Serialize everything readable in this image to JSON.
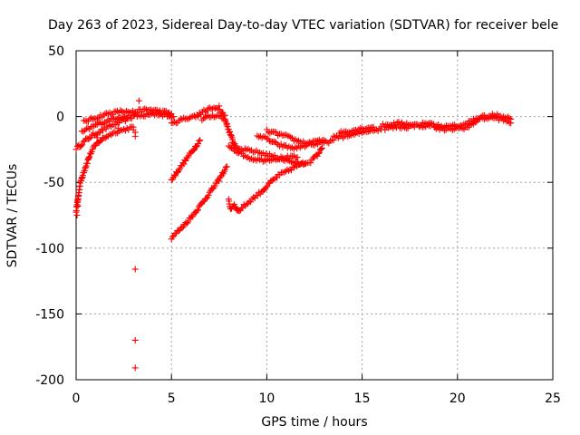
{
  "chart_data": {
    "type": "scatter",
    "title": "Day 263 of 2023, Sidereal Day-to-day VTEC variation (SDTVAR) for receiver bele",
    "xlabel": "GPS time / hours",
    "ylabel": "SDTVAR / TECUs",
    "xlim": [
      0,
      25
    ],
    "ylim": [
      -200,
      50
    ],
    "xticks": [
      0,
      5,
      10,
      15,
      20,
      25
    ],
    "yticks": [
      -200,
      -150,
      -100,
      -50,
      0,
      50
    ],
    "xtick_labels": [
      "0",
      "5",
      "10",
      "15",
      "20",
      "25"
    ],
    "ytick_labels": [
      "-200",
      "-150",
      "-100",
      "-50",
      "0",
      "50"
    ],
    "grid": true,
    "marker": "+",
    "color": "#ff0000",
    "series": [
      {
        "name": "SDTVAR",
        "tracks": [
          [
            [
              0.0,
              -24
            ],
            [
              0.2,
              -22
            ],
            [
              0.5,
              -18
            ],
            [
              0.9,
              -14
            ],
            [
              1.4,
              -10
            ],
            [
              2.0,
              -6
            ],
            [
              2.5,
              -3
            ],
            [
              3.0,
              0
            ],
            [
              3.1,
              2
            ]
          ],
          [
            [
              0.0,
              -72
            ],
            [
              0.1,
              -62
            ],
            [
              0.2,
              -52
            ],
            [
              0.35,
              -44
            ],
            [
              0.5,
              -38
            ],
            [
              0.7,
              -30
            ],
            [
              0.9,
              -24
            ],
            [
              1.2,
              -19
            ],
            [
              1.6,
              -15
            ],
            [
              2.0,
              -12
            ],
            [
              2.5,
              -10
            ],
            [
              3.0,
              -8
            ]
          ],
          [
            [
              0.4,
              -4
            ],
            [
              0.8,
              -2
            ],
            [
              1.2,
              0
            ],
            [
              1.6,
              2
            ],
            [
              2.0,
              3
            ],
            [
              2.4,
              4
            ],
            [
              2.8,
              3
            ]
          ],
          [
            [
              0.3,
              -12
            ],
            [
              0.7,
              -9
            ],
            [
              1.1,
              -6
            ],
            [
              1.5,
              -4
            ],
            [
              1.9,
              -2
            ],
            [
              2.3,
              0
            ],
            [
              2.7,
              -1
            ]
          ],
          [
            [
              2.8,
              3
            ],
            [
              3.2,
              4
            ],
            [
              3.6,
              5
            ],
            [
              4.0,
              5
            ],
            [
              4.4,
              4
            ],
            [
              4.8,
              3
            ],
            [
              5.0,
              2
            ]
          ],
          [
            [
              3.2,
              0
            ],
            [
              3.7,
              1
            ],
            [
              4.2,
              2
            ],
            [
              4.7,
              1
            ],
            [
              5.1,
              0
            ]
          ],
          [
            [
              5.0,
              -6
            ],
            [
              5.4,
              -3
            ],
            [
              5.8,
              -1
            ],
            [
              6.2,
              0
            ],
            [
              6.4,
              1
            ]
          ],
          [
            [
              5.0,
              -48
            ],
            [
              5.3,
              -42
            ],
            [
              5.6,
              -36
            ],
            [
              5.9,
              -30
            ],
            [
              6.2,
              -24
            ],
            [
              6.5,
              -18
            ]
          ],
          [
            [
              5.0,
              -92
            ],
            [
              5.5,
              -85
            ],
            [
              6.0,
              -77
            ],
            [
              6.5,
              -68
            ],
            [
              7.0,
              -58
            ],
            [
              7.5,
              -48
            ],
            [
              7.9,
              -38
            ]
          ],
          [
            [
              6.4,
              1
            ],
            [
              6.7,
              4
            ],
            [
              7.0,
              6
            ],
            [
              7.3,
              6
            ],
            [
              7.6,
              4
            ],
            [
              7.8,
              1
            ]
          ],
          [
            [
              6.6,
              -2
            ],
            [
              7.0,
              0
            ],
            [
              7.4,
              1
            ],
            [
              7.8,
              -2
            ]
          ],
          [
            [
              7.8,
              -2
            ],
            [
              8.0,
              -10
            ],
            [
              8.2,
              -18
            ],
            [
              8.4,
              -23
            ],
            [
              8.6,
              -25
            ]
          ],
          [
            [
              8.0,
              -64
            ],
            [
              8.1,
              -70
            ],
            [
              8.3,
              -67
            ],
            [
              8.5,
              -72
            ],
            [
              8.8,
              -68
            ],
            [
              9.3,
              -62
            ],
            [
              9.8,
              -56
            ],
            [
              10.2,
              -50
            ],
            [
              10.6,
              -45
            ],
            [
              11.0,
              -42
            ],
            [
              11.5,
              -38
            ],
            [
              12.0,
              -36
            ]
          ],
          [
            [
              8.0,
              -22
            ],
            [
              8.6,
              -28
            ],
            [
              9.2,
              -32
            ],
            [
              9.8,
              -33
            ],
            [
              10.4,
              -32
            ],
            [
              11.0,
              -31
            ],
            [
              11.6,
              -31
            ]
          ],
          [
            [
              8.6,
              -25
            ],
            [
              9.2,
              -26
            ],
            [
              9.8,
              -28
            ],
            [
              10.5,
              -31
            ],
            [
              11.2,
              -34
            ],
            [
              11.8,
              -36
            ],
            [
              12.3,
              -34
            ],
            [
              12.6,
              -30
            ],
            [
              12.9,
              -24
            ]
          ],
          [
            [
              9.5,
              -14
            ],
            [
              10.0,
              -17
            ],
            [
              10.5,
              -21
            ],
            [
              11.0,
              -23
            ],
            [
              11.5,
              -24
            ],
            [
              12.0,
              -22
            ],
            [
              12.5,
              -19
            ],
            [
              13.0,
              -18
            ]
          ],
          [
            [
              10.0,
              -11
            ],
            [
              10.5,
              -13
            ],
            [
              11.0,
              -15
            ],
            [
              11.5,
              -18
            ],
            [
              12.0,
              -20
            ],
            [
              12.5,
              -21
            ],
            [
              13.0,
              -20
            ],
            [
              13.5,
              -18
            ]
          ],
          [
            [
              13.5,
              -16
            ],
            [
              14.0,
              -15
            ],
            [
              14.5,
              -14
            ],
            [
              15.0,
              -12
            ],
            [
              15.5,
              -10
            ],
            [
              16.0,
              -10
            ]
          ],
          [
            [
              13.8,
              -12
            ],
            [
              14.4,
              -11
            ],
            [
              15.0,
              -9
            ],
            [
              15.6,
              -8
            ]
          ],
          [
            [
              16.0,
              -7
            ],
            [
              16.5,
              -6
            ],
            [
              17.0,
              -5
            ],
            [
              17.5,
              -6
            ],
            [
              18.0,
              -7
            ],
            [
              18.5,
              -7
            ]
          ],
          [
            [
              16.2,
              -9
            ],
            [
              16.8,
              -8
            ],
            [
              17.4,
              -8
            ],
            [
              18.0,
              -6
            ],
            [
              18.6,
              -5
            ]
          ],
          [
            [
              18.5,
              -6
            ],
            [
              19.0,
              -7
            ],
            [
              19.5,
              -8
            ],
            [
              20.0,
              -7
            ],
            [
              20.5,
              -6
            ],
            [
              21.0,
              -4
            ]
          ],
          [
            [
              18.8,
              -9
            ],
            [
              19.4,
              -10
            ],
            [
              20.0,
              -9
            ],
            [
              20.6,
              -8
            ]
          ],
          [
            [
              20.6,
              -4
            ],
            [
              21.0,
              -2
            ],
            [
              21.5,
              -1
            ],
            [
              22.0,
              -1
            ],
            [
              22.5,
              -3
            ],
            [
              22.8,
              -5
            ]
          ],
          [
            [
              21.0,
              -1
            ],
            [
              21.5,
              0
            ],
            [
              22.0,
              1
            ],
            [
              22.5,
              0
            ],
            [
              22.8,
              -2
            ]
          ]
        ],
        "points": [
          [
            3.1,
            -116
          ],
          [
            3.1,
            -170
          ],
          [
            3.1,
            -191
          ],
          [
            3.1,
            -12
          ],
          [
            3.1,
            -15
          ],
          [
            3.3,
            12
          ],
          [
            3.0,
            -10
          ],
          [
            0.05,
            -75
          ],
          [
            0.1,
            -68
          ],
          [
            1.1,
            -16
          ],
          [
            1.3,
            -18
          ],
          [
            2.2,
            -9
          ],
          [
            4.9,
            0
          ],
          [
            7.5,
            8
          ],
          [
            8.2,
            -20
          ]
        ]
      }
    ]
  }
}
